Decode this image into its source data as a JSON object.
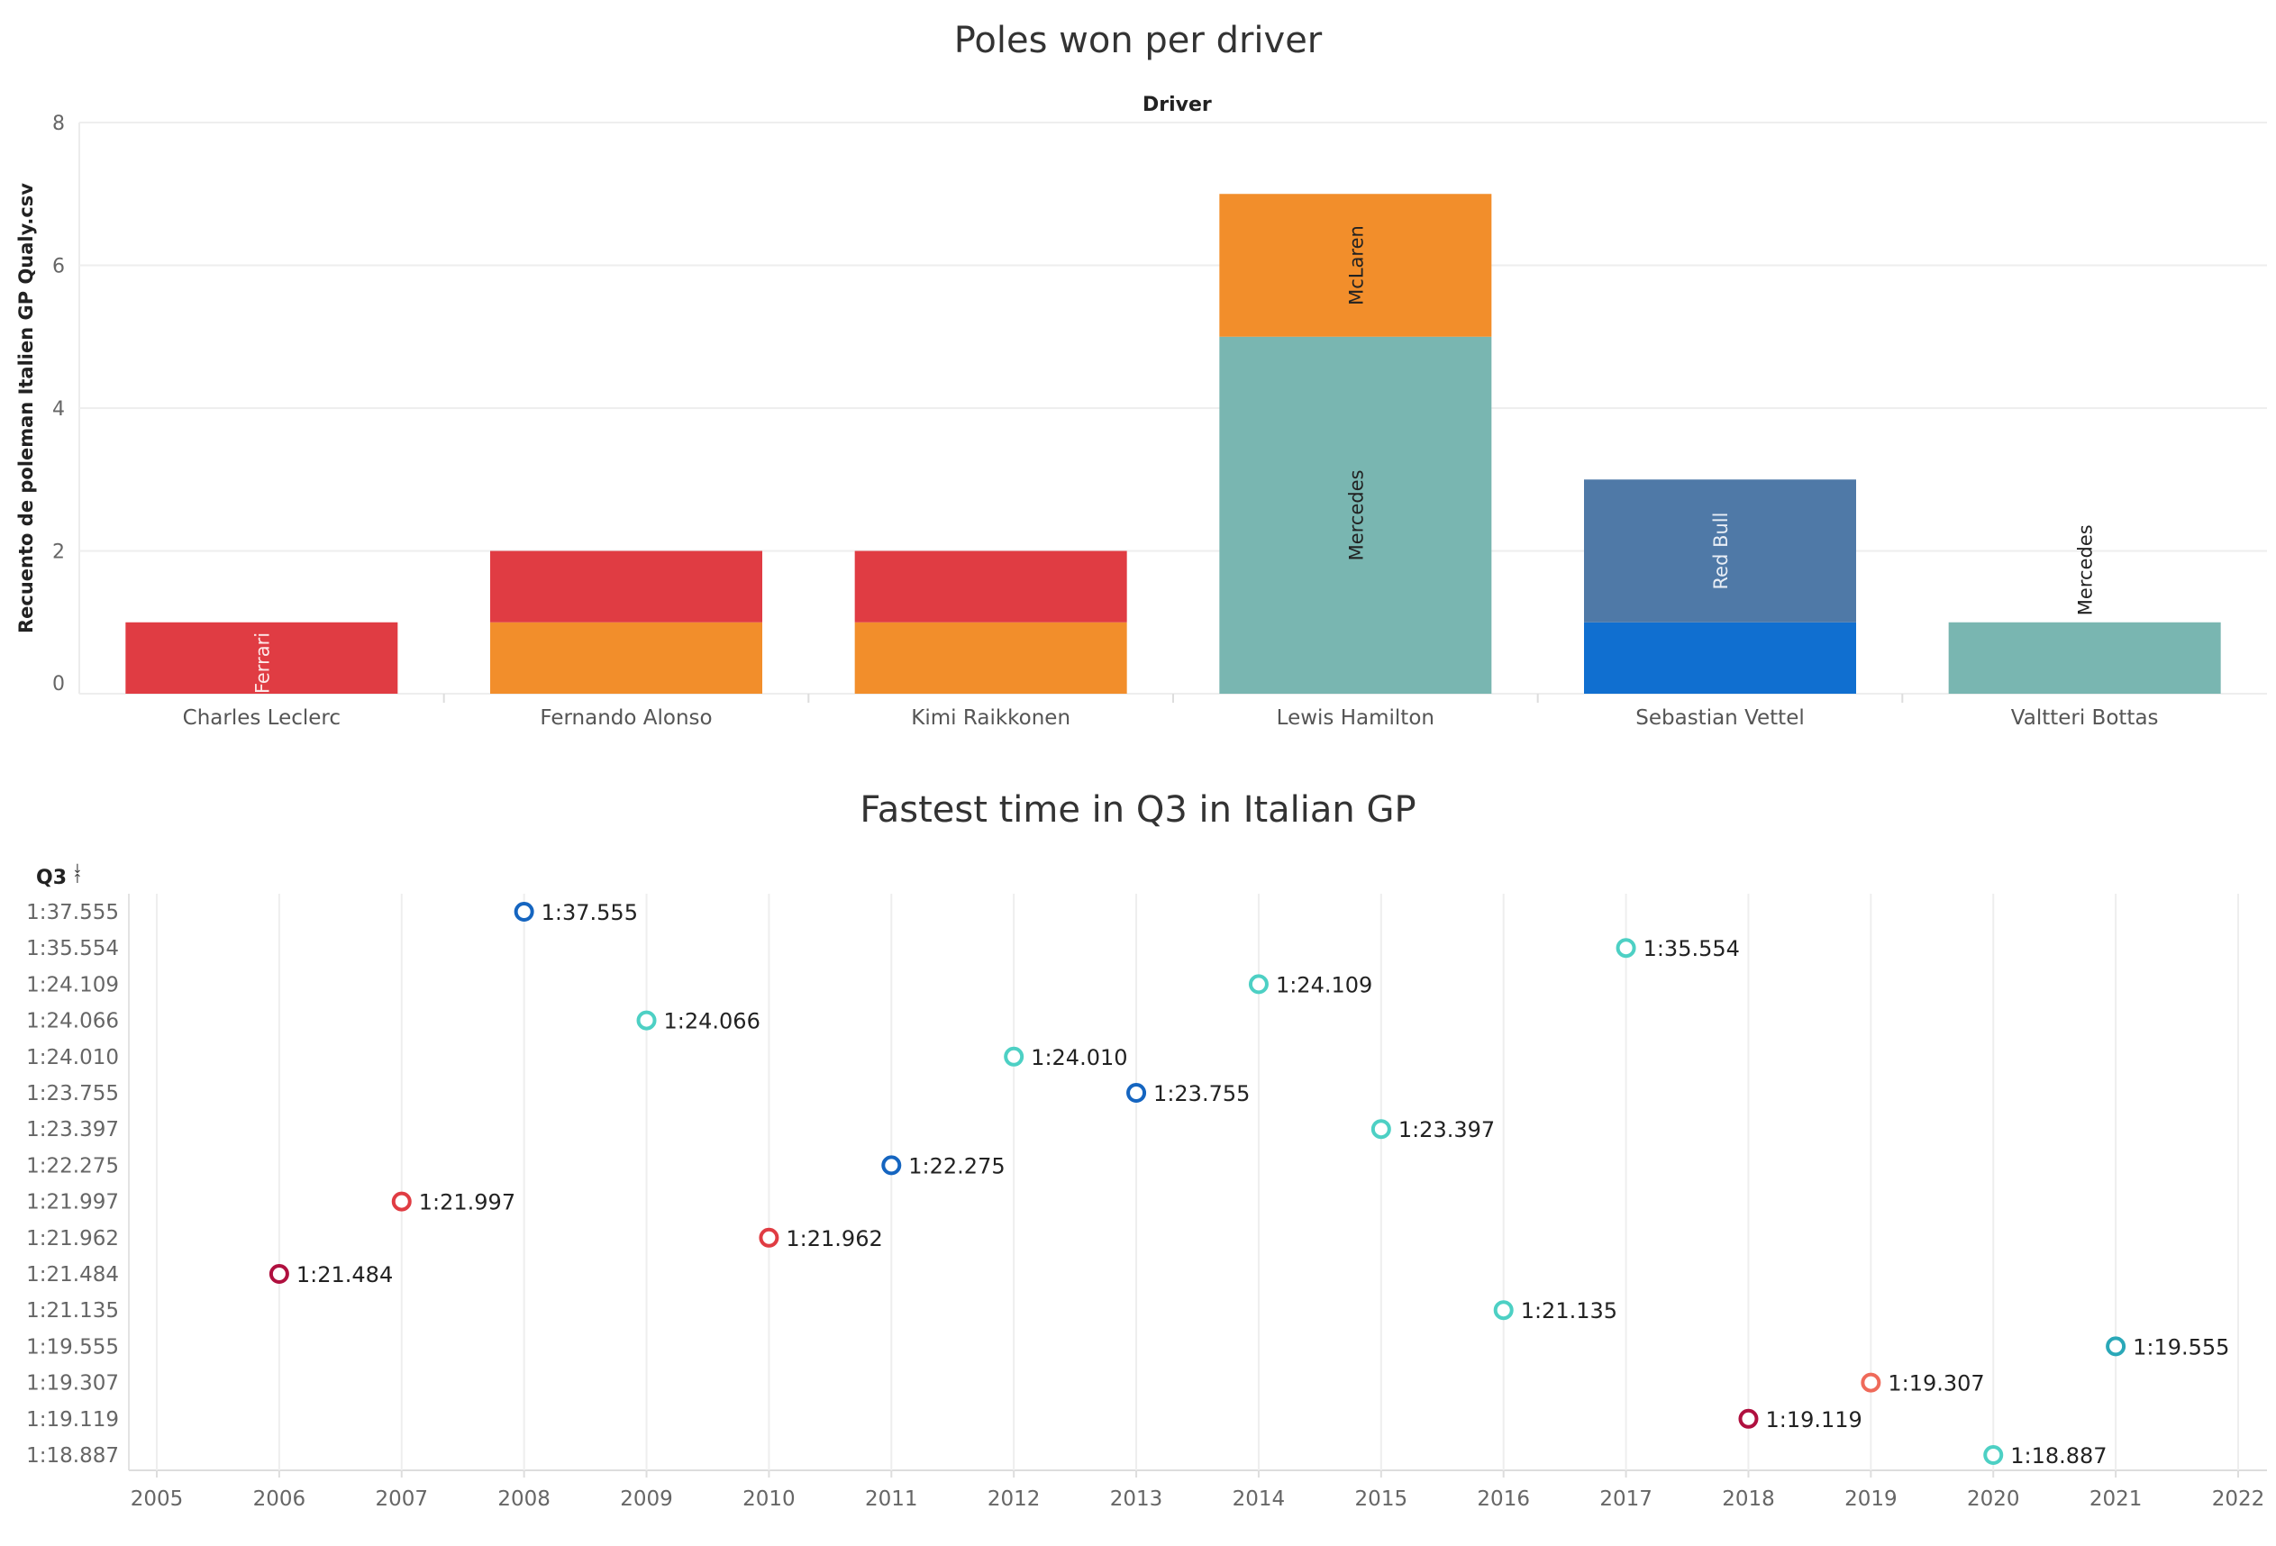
{
  "chart_data": [
    {
      "type": "bar",
      "title": "Poles won per driver",
      "column_header": "Driver",
      "ylabel": "Recuento de poleman Italien GP Qualy.csv",
      "xlabel": "",
      "ylim": [
        0,
        8
      ],
      "yticks": [
        "0",
        "2",
        "4",
        "6",
        "8"
      ],
      "categories": [
        "Charles Leclerc",
        "Fernando Alonso",
        "Kimi Raikkonen",
        "Lewis Hamilton",
        "Sebastian Vettel",
        "Valtteri Bottas"
      ],
      "stacks": [
        [
          {
            "value": 1,
            "color": "#e03c43",
            "label": "Ferrari",
            "label_color": "#fde8e8"
          }
        ],
        [
          {
            "value": 1,
            "color": "#f28e2b",
            "label": ""
          },
          {
            "value": 1,
            "color": "#e03c43",
            "label": ""
          }
        ],
        [
          {
            "value": 1,
            "color": "#f28e2b",
            "label": ""
          },
          {
            "value": 1,
            "color": "#e03c43",
            "label": ""
          }
        ],
        [
          {
            "value": 5,
            "color": "#79b6b1",
            "label": "Mercedes",
            "label_color": "#222222"
          },
          {
            "value": 2,
            "color": "#f28e2b",
            "label": "McLaren",
            "label_color": "#222222"
          }
        ],
        [
          {
            "value": 1,
            "color": "#106fd0",
            "label": ""
          },
          {
            "value": 2,
            "color": "#4f79a7",
            "label": "Red Bull",
            "label_color": "#e8eef6"
          }
        ],
        [
          {
            "value": 1,
            "color": "#79b6b1",
            "label": "Mercedes",
            "label_color": "#222222",
            "label_outside": true
          }
        ]
      ],
      "grid": true,
      "legend": "none"
    },
    {
      "type": "scatter",
      "title": "Fastest time in Q3 in Italian GP",
      "column_header": "Q3",
      "sort_icon": "sort-descending-icon",
      "x_ticks": [
        "2005",
        "2006",
        "2007",
        "2008",
        "2009",
        "2010",
        "2011",
        "2012",
        "2013",
        "2014",
        "2015",
        "2016",
        "2017",
        "2018",
        "2019",
        "2020",
        "2021",
        "2022"
      ],
      "xlim": [
        2005,
        2022
      ],
      "y_categories": [
        "1:37.555",
        "1:35.554",
        "1:24.109",
        "1:24.066",
        "1:24.010",
        "1:23.755",
        "1:23.397",
        "1:22.275",
        "1:21.997",
        "1:21.962",
        "1:21.484",
        "1:21.135",
        "1:19.555",
        "1:19.307",
        "1:19.119",
        "1:18.887"
      ],
      "points": [
        {
          "x": 2008,
          "y": "1:37.555",
          "label": "1:37.555",
          "color": "#1565c0"
        },
        {
          "x": 2017,
          "y": "1:35.554",
          "label": "1:35.554",
          "color": "#4dd0c4"
        },
        {
          "x": 2014,
          "y": "1:24.109",
          "label": "1:24.109",
          "color": "#4dd0c4"
        },
        {
          "x": 2009,
          "y": "1:24.066",
          "label": "1:24.066",
          "color": "#4dd0c4"
        },
        {
          "x": 2012,
          "y": "1:24.010",
          "label": "1:24.010",
          "color": "#4dd0c4"
        },
        {
          "x": 2013,
          "y": "1:23.755",
          "label": "1:23.755",
          "color": "#1565c0"
        },
        {
          "x": 2015,
          "y": "1:23.397",
          "label": "1:23.397",
          "color": "#4dd0c4"
        },
        {
          "x": 2011,
          "y": "1:22.275",
          "label": "1:22.275",
          "color": "#1565c0"
        },
        {
          "x": 2007,
          "y": "1:21.997",
          "label": "1:21.997",
          "color": "#e03c43"
        },
        {
          "x": 2010,
          "y": "1:21.962",
          "label": "1:21.962",
          "color": "#e03c43"
        },
        {
          "x": 2006,
          "y": "1:21.484",
          "label": "1:21.484",
          "color": "#b0103f"
        },
        {
          "x": 2016,
          "y": "1:21.135",
          "label": "1:21.135",
          "color": "#4dd0c4"
        },
        {
          "x": 2021,
          "y": "1:19.555",
          "label": "1:19.555",
          "color": "#2aa8b8"
        },
        {
          "x": 2019,
          "y": "1:19.307",
          "label": "1:19.307",
          "color": "#ef6a5a"
        },
        {
          "x": 2018,
          "y": "1:19.119",
          "label": "1:19.119",
          "color": "#b0103f"
        },
        {
          "x": 2020,
          "y": "1:18.887",
          "label": "1:18.887",
          "color": "#4dd0c4"
        }
      ],
      "grid": true,
      "legend": "none"
    }
  ]
}
